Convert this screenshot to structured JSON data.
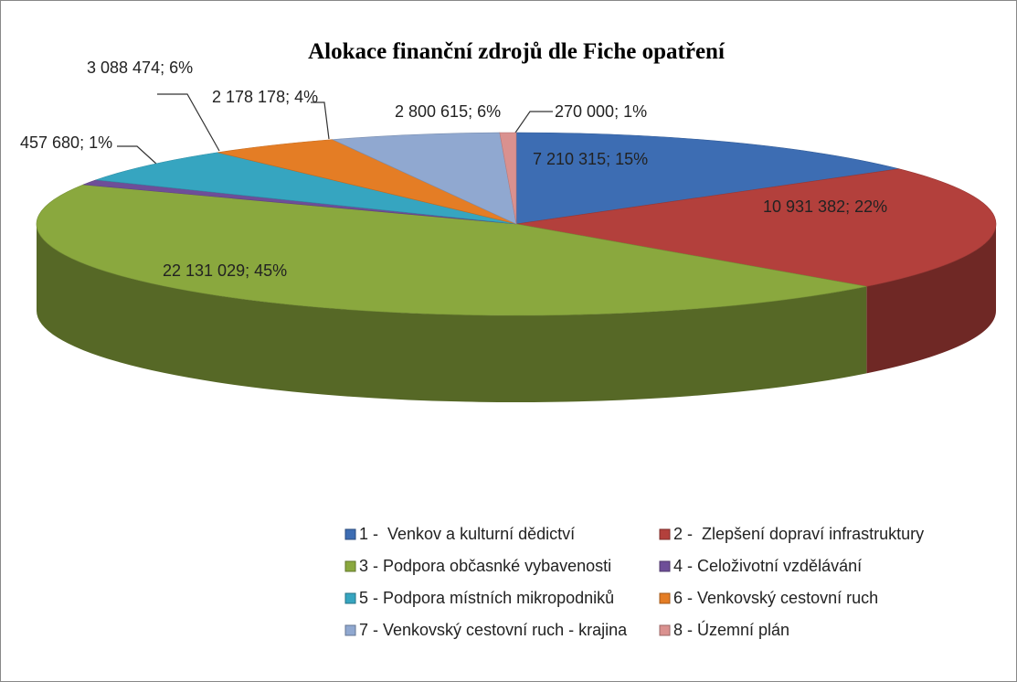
{
  "chart_data": {
    "type": "pie",
    "title": "Alokace finanční zdrojů dle Fiche opatření",
    "categories": [
      "1 -  Venkov a kulturní dědictví",
      "2 -  Zlepšení dopraví infrastruktury",
      "3 - Podpora občasnké vybavenosti",
      "4 - Celoživotní vzdělávání",
      "5 - Podpora místních mikropodniků",
      "6 - Venkovský cestovní ruch",
      "7 - Venkovský cestovní ruch - krajina",
      "8 - Územní plán"
    ],
    "values": [
      7210315,
      10931382,
      22131029,
      457680,
      3088474,
      2178178,
      2800615,
      270000
    ],
    "value_labels": [
      "7 210 315; 15%",
      "10 931 382; 22%",
      "22 131 029; 45%",
      "457 680; 1%",
      "3 088 474; 6%",
      "2 178 178; 4%",
      "2 800 615; 6%",
      "270 000; 1%"
    ],
    "colors": [
      "#3d6db3",
      "#b3403c",
      "#8aa83e",
      "#6e4e98",
      "#36a5c0",
      "#e47d25",
      "#90a8d0",
      "#da918f"
    ],
    "legend": "bottom"
  }
}
